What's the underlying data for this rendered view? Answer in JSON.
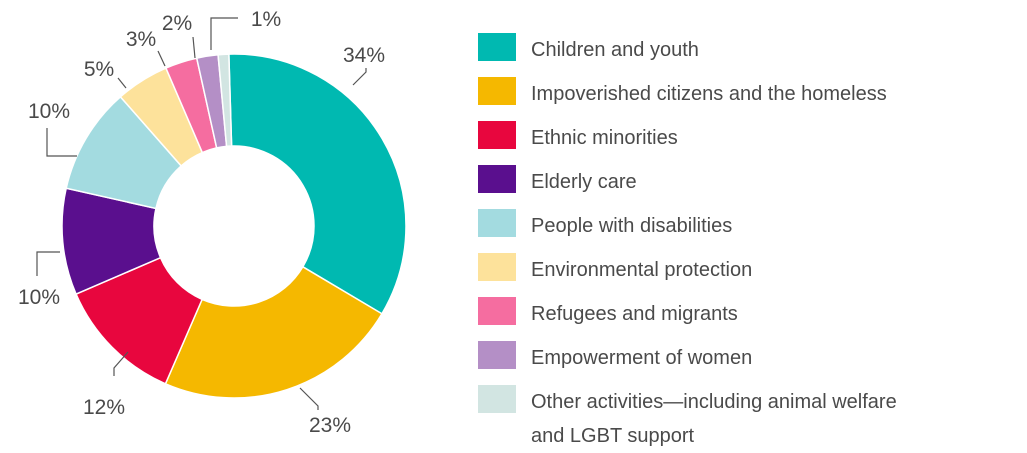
{
  "chart_data": {
    "type": "pie",
    "style": "donut",
    "legend_position": "right",
    "categories": [
      "Children and youth",
      "Impoverished citizens and the homeless",
      "Ethnic minorities",
      "Elderly care",
      "People with disabilities",
      "Environmental protection",
      "Refugees and migrants",
      "Empowerment of women",
      "Other activities—including animal welfare and LGBT support"
    ],
    "values": [
      34,
      23,
      12,
      10,
      10,
      5,
      3,
      2,
      1
    ],
    "value_labels": [
      "34%",
      "23%",
      "12%",
      "10%",
      "10%",
      "5%",
      "3%",
      "2%",
      "1%"
    ],
    "legend_lines": [
      [
        "Children and youth"
      ],
      [
        "Impoverished citizens and the homeless"
      ],
      [
        "Ethnic minorities"
      ],
      [
        "Elderly care"
      ],
      [
        "People with disabilities"
      ],
      [
        "Environmental protection"
      ],
      [
        "Refugees and migrants"
      ],
      [
        "Empowerment of women"
      ],
      [
        "Other activities—including animal welfare",
        "and LGBT support"
      ]
    ],
    "colors": [
      "#00b9b1",
      "#f5b800",
      "#e8063e",
      "#5a0f8e",
      "#a3dbe0",
      "#fde29b",
      "#f56da0",
      "#b48fc6",
      "#d2e5e2"
    ]
  }
}
